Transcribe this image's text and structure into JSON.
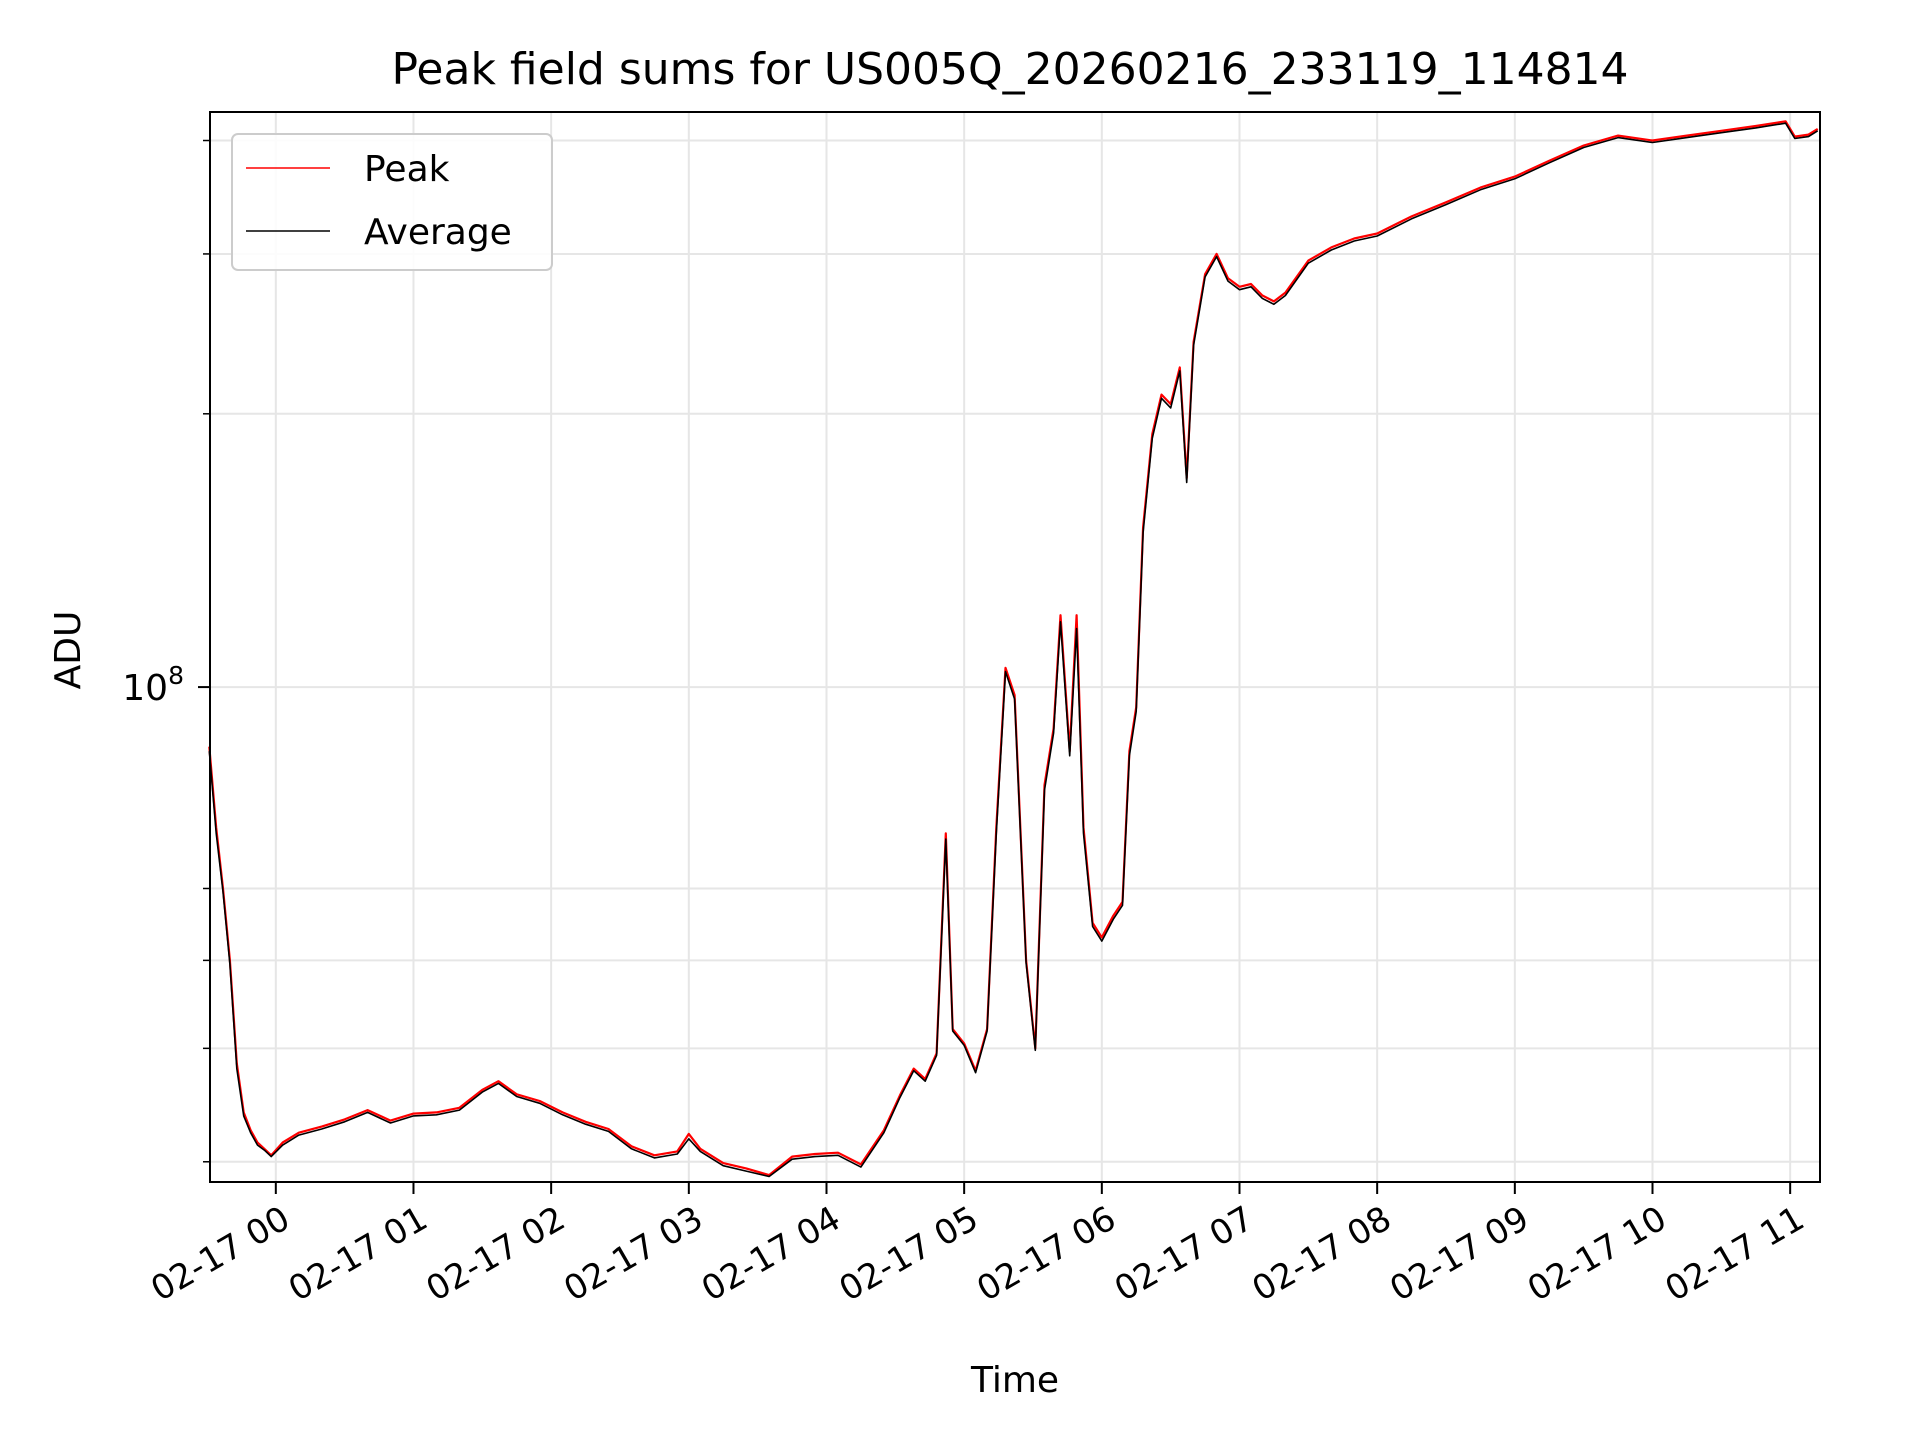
{
  "chart_data": {
    "type": "line",
    "title": "Peak field sums for US005Q_20260216_233119_114814",
    "xlabel": "Time",
    "ylabel": "ADU",
    "x_ticks": [
      "02-17 00",
      "02-17 01",
      "02-17 02",
      "02-17 03",
      "02-17 04",
      "02-17 05",
      "02-17 06",
      "02-17 07",
      "02-17 08",
      "02-17 09",
      "02-17 10",
      "02-17 11"
    ],
    "y_tick_labels": [
      {
        "base": "10",
        "exp": "8",
        "value": 100000000
      }
    ],
    "y_scale": "log",
    "xlim": [
      "2026-02-16 23:31:19",
      "2026-02-17 11:13:00"
    ],
    "ylim": [
      28500000,
      430000000
    ],
    "grid": true,
    "legend_position": "upper left",
    "series": [
      {
        "name": "Peak",
        "color": "#ff0000",
        "points": [
          [
            "2026-02-16 23:31",
            86000000
          ],
          [
            "2026-02-16 23:34",
            70000000
          ],
          [
            "2026-02-16 23:37",
            60000000
          ],
          [
            "2026-02-16 23:40",
            50000000
          ],
          [
            "2026-02-16 23:43",
            38500000
          ],
          [
            "2026-02-16 23:46",
            34000000
          ],
          [
            "2026-02-16 23:49",
            32500000
          ],
          [
            "2026-02-16 23:52",
            31500000
          ],
          [
            "2026-02-16 23:55",
            31000000
          ],
          [
            "2026-02-16 23:58",
            30500000
          ],
          [
            "2026-02-17 00:03",
            31500000
          ],
          [
            "2026-02-17 00:10",
            32300000
          ],
          [
            "2026-02-17 00:20",
            32800000
          ],
          [
            "2026-02-17 00:30",
            33400000
          ],
          [
            "2026-02-17 00:40",
            34200000
          ],
          [
            "2026-02-17 00:50",
            33300000
          ],
          [
            "2026-02-17 01:00",
            33900000
          ],
          [
            "2026-02-17 01:10",
            34000000
          ],
          [
            "2026-02-17 01:20",
            34400000
          ],
          [
            "2026-02-17 01:30",
            36000000
          ],
          [
            "2026-02-17 01:37",
            36800000
          ],
          [
            "2026-02-17 01:45",
            35600000
          ],
          [
            "2026-02-17 01:55",
            35000000
          ],
          [
            "2026-02-17 02:05",
            34000000
          ],
          [
            "2026-02-17 02:15",
            33200000
          ],
          [
            "2026-02-17 02:25",
            32600000
          ],
          [
            "2026-02-17 02:35",
            31200000
          ],
          [
            "2026-02-17 02:45",
            30500000
          ],
          [
            "2026-02-17 02:55",
            30800000
          ],
          [
            "2026-02-17 03:00",
            32200000
          ],
          [
            "2026-02-17 03:05",
            31000000
          ],
          [
            "2026-02-17 03:15",
            29900000
          ],
          [
            "2026-02-17 03:25",
            29500000
          ],
          [
            "2026-02-17 03:35",
            29000000
          ],
          [
            "2026-02-17 03:45",
            30400000
          ],
          [
            "2026-02-17 03:55",
            30600000
          ],
          [
            "2026-02-17 04:05",
            30700000
          ],
          [
            "2026-02-17 04:15",
            29800000
          ],
          [
            "2026-02-17 04:25",
            32500000
          ],
          [
            "2026-02-17 04:32",
            35500000
          ],
          [
            "2026-02-17 04:38",
            38000000
          ],
          [
            "2026-02-17 04:43",
            37000000
          ],
          [
            "2026-02-17 04:48",
            39500000
          ],
          [
            "2026-02-17 04:52",
            69000000
          ],
          [
            "2026-02-17 04:55",
            42000000
          ],
          [
            "2026-02-17 05:00",
            40500000
          ],
          [
            "2026-02-17 05:05",
            37800000
          ],
          [
            "2026-02-17 05:10",
            42000000
          ],
          [
            "2026-02-17 05:14",
            70000000
          ],
          [
            "2026-02-17 05:18",
            105000000
          ],
          [
            "2026-02-17 05:22",
            98000000
          ],
          [
            "2026-02-17 05:27",
            50000000
          ],
          [
            "2026-02-17 05:31",
            40000000
          ],
          [
            "2026-02-17 05:35",
            78000000
          ],
          [
            "2026-02-17 05:39",
            90000000
          ],
          [
            "2026-02-17 05:42",
            120000000
          ],
          [
            "2026-02-17 05:46",
            85000000
          ],
          [
            "2026-02-17 05:49",
            120000000
          ],
          [
            "2026-02-17 05:52",
            70000000
          ],
          [
            "2026-02-17 05:56",
            55000000
          ],
          [
            "2026-02-17 06:00",
            53000000
          ],
          [
            "2026-02-17 06:05",
            56000000
          ],
          [
            "2026-02-17 06:09",
            58000000
          ],
          [
            "2026-02-17 06:12",
            85000000
          ],
          [
            "2026-02-17 06:15",
            95000000
          ],
          [
            "2026-02-17 06:18",
            150000000
          ],
          [
            "2026-02-17 06:22",
            190000000
          ],
          [
            "2026-02-17 06:26",
            210000000
          ],
          [
            "2026-02-17 06:30",
            205000000
          ],
          [
            "2026-02-17 06:34",
            225000000
          ],
          [
            "2026-02-17 06:37",
            170000000
          ],
          [
            "2026-02-17 06:40",
            240000000
          ],
          [
            "2026-02-17 06:45",
            285000000
          ],
          [
            "2026-02-17 06:50",
            300000000
          ],
          [
            "2026-02-17 06:55",
            282000000
          ],
          [
            "2026-02-17 07:00",
            276000000
          ],
          [
            "2026-02-17 07:05",
            278000000
          ],
          [
            "2026-02-17 07:10",
            270000000
          ],
          [
            "2026-02-17 07:15",
            266000000
          ],
          [
            "2026-02-17 07:20",
            272000000
          ],
          [
            "2026-02-17 07:30",
            295000000
          ],
          [
            "2026-02-17 07:40",
            305000000
          ],
          [
            "2026-02-17 07:50",
            312000000
          ],
          [
            "2026-02-17 08:00",
            316000000
          ],
          [
            "2026-02-17 08:15",
            330000000
          ],
          [
            "2026-02-17 08:30",
            342000000
          ],
          [
            "2026-02-17 08:45",
            355000000
          ],
          [
            "2026-02-17 09:00",
            365000000
          ],
          [
            "2026-02-17 09:15",
            380000000
          ],
          [
            "2026-02-17 09:30",
            395000000
          ],
          [
            "2026-02-17 09:45",
            405000000
          ],
          [
            "2026-02-17 10:00",
            400000000
          ],
          [
            "2026-02-17 10:15",
            405000000
          ],
          [
            "2026-02-17 10:30",
            410000000
          ],
          [
            "2026-02-17 10:45",
            415000000
          ],
          [
            "2026-02-17 10:58",
            420000000
          ],
          [
            "2026-02-17 11:02",
            404000000
          ],
          [
            "2026-02-17 11:08",
            406000000
          ],
          [
            "2026-02-17 11:12",
            412000000
          ]
        ]
      },
      {
        "name": "Average",
        "color": "#000000",
        "points": [
          [
            "2026-02-16 23:31",
            85000000
          ],
          [
            "2026-02-16 23:34",
            69000000
          ],
          [
            "2026-02-16 23:37",
            59500000
          ],
          [
            "2026-02-16 23:40",
            49500000
          ],
          [
            "2026-02-16 23:43",
            38000000
          ],
          [
            "2026-02-16 23:46",
            33700000
          ],
          [
            "2026-02-16 23:49",
            32300000
          ],
          [
            "2026-02-16 23:52",
            31300000
          ],
          [
            "2026-02-16 23:55",
            30900000
          ],
          [
            "2026-02-16 23:58",
            30400000
          ],
          [
            "2026-02-17 00:03",
            31300000
          ],
          [
            "2026-02-17 00:10",
            32100000
          ],
          [
            "2026-02-17 00:20",
            32600000
          ],
          [
            "2026-02-17 00:30",
            33200000
          ],
          [
            "2026-02-17 00:40",
            34000000
          ],
          [
            "2026-02-17 00:50",
            33100000
          ],
          [
            "2026-02-17 01:00",
            33700000
          ],
          [
            "2026-02-17 01:10",
            33800000
          ],
          [
            "2026-02-17 01:20",
            34200000
          ],
          [
            "2026-02-17 01:30",
            35800000
          ],
          [
            "2026-02-17 01:37",
            36600000
          ],
          [
            "2026-02-17 01:45",
            35400000
          ],
          [
            "2026-02-17 01:55",
            34800000
          ],
          [
            "2026-02-17 02:05",
            33800000
          ],
          [
            "2026-02-17 02:15",
            33000000
          ],
          [
            "2026-02-17 02:25",
            32400000
          ],
          [
            "2026-02-17 02:35",
            31000000
          ],
          [
            "2026-02-17 02:45",
            30300000
          ],
          [
            "2026-02-17 02:55",
            30600000
          ],
          [
            "2026-02-17 03:00",
            31800000
          ],
          [
            "2026-02-17 03:05",
            30800000
          ],
          [
            "2026-02-17 03:15",
            29700000
          ],
          [
            "2026-02-17 03:25",
            29300000
          ],
          [
            "2026-02-17 03:35",
            28900000
          ],
          [
            "2026-02-17 03:45",
            30200000
          ],
          [
            "2026-02-17 03:55",
            30400000
          ],
          [
            "2026-02-17 04:05",
            30500000
          ],
          [
            "2026-02-17 04:15",
            29600000
          ],
          [
            "2026-02-17 04:25",
            32300000
          ],
          [
            "2026-02-17 04:32",
            35300000
          ],
          [
            "2026-02-17 04:38",
            37800000
          ],
          [
            "2026-02-17 04:43",
            36800000
          ],
          [
            "2026-02-17 04:48",
            39300000
          ],
          [
            "2026-02-17 04:52",
            68000000
          ],
          [
            "2026-02-17 04:55",
            41800000
          ],
          [
            "2026-02-17 05:00",
            40300000
          ],
          [
            "2026-02-17 05:05",
            37600000
          ],
          [
            "2026-02-17 05:10",
            41800000
          ],
          [
            "2026-02-17 05:14",
            69000000
          ],
          [
            "2026-02-17 05:18",
            104000000
          ],
          [
            "2026-02-17 05:22",
            97000000
          ],
          [
            "2026-02-17 05:27",
            49700000
          ],
          [
            "2026-02-17 05:31",
            39800000
          ],
          [
            "2026-02-17 05:35",
            77000000
          ],
          [
            "2026-02-17 05:39",
            89000000
          ],
          [
            "2026-02-17 05:42",
            118000000
          ],
          [
            "2026-02-17 05:46",
            84000000
          ],
          [
            "2026-02-17 05:49",
            116000000
          ],
          [
            "2026-02-17 05:52",
            69000000
          ],
          [
            "2026-02-17 05:56",
            54500000
          ],
          [
            "2026-02-17 06:00",
            52500000
          ],
          [
            "2026-02-17 06:05",
            55500000
          ],
          [
            "2026-02-17 06:09",
            57500000
          ],
          [
            "2026-02-17 06:12",
            84000000
          ],
          [
            "2026-02-17 06:15",
            94000000
          ],
          [
            "2026-02-17 06:18",
            148000000
          ],
          [
            "2026-02-17 06:22",
            188000000
          ],
          [
            "2026-02-17 06:26",
            208000000
          ],
          [
            "2026-02-17 06:30",
            203000000
          ],
          [
            "2026-02-17 06:34",
            223000000
          ],
          [
            "2026-02-17 06:37",
            168000000
          ],
          [
            "2026-02-17 06:40",
            238000000
          ],
          [
            "2026-02-17 06:45",
            283000000
          ],
          [
            "2026-02-17 06:50",
            298000000
          ],
          [
            "2026-02-17 06:55",
            280000000
          ],
          [
            "2026-02-17 07:00",
            274000000
          ],
          [
            "2026-02-17 07:05",
            276000000
          ],
          [
            "2026-02-17 07:10",
            268000000
          ],
          [
            "2026-02-17 07:15",
            264000000
          ],
          [
            "2026-02-17 07:20",
            270000000
          ],
          [
            "2026-02-17 07:30",
            293000000
          ],
          [
            "2026-02-17 07:40",
            303000000
          ],
          [
            "2026-02-17 07:50",
            310000000
          ],
          [
            "2026-02-17 08:00",
            314000000
          ],
          [
            "2026-02-17 08:15",
            328000000
          ],
          [
            "2026-02-17 08:30",
            340000000
          ],
          [
            "2026-02-17 08:45",
            353000000
          ],
          [
            "2026-02-17 09:00",
            363000000
          ],
          [
            "2026-02-17 09:15",
            378000000
          ],
          [
            "2026-02-17 09:30",
            393000000
          ],
          [
            "2026-02-17 09:45",
            403000000
          ],
          [
            "2026-02-17 10:00",
            398000000
          ],
          [
            "2026-02-17 10:15",
            403000000
          ],
          [
            "2026-02-17 10:30",
            408000000
          ],
          [
            "2026-02-17 10:45",
            413000000
          ],
          [
            "2026-02-17 10:58",
            418000000
          ],
          [
            "2026-02-17 11:02",
            402000000
          ],
          [
            "2026-02-17 11:08",
            404000000
          ],
          [
            "2026-02-17 11:12",
            410000000
          ]
        ]
      }
    ]
  }
}
